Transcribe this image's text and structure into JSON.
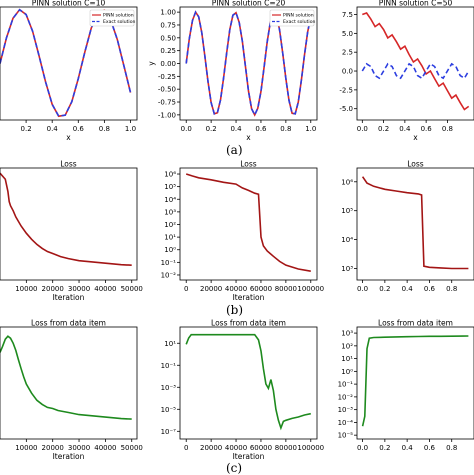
{
  "captions": [
    "(a)",
    "(b)",
    "(c)"
  ],
  "chart_data": [
    {
      "id": "a1",
      "type": "line",
      "title": "PINN solution C=10",
      "xlabel": "x",
      "ylabel": "",
      "xlim": [
        0,
        1.05
      ],
      "ylim": [
        -1.05,
        1.05
      ],
      "xticks": [
        "0.2",
        "0.4",
        "0.6",
        "0.8",
        "1.0"
      ],
      "xtick_values": [
        0.2,
        0.4,
        0.6,
        0.8,
        1.0
      ],
      "yticks": [],
      "ytick_values": [],
      "legend": {
        "position": "top-right",
        "entries": [
          "PINN solution",
          "Exact solution"
        ]
      },
      "series": [
        {
          "name": "PINN solution",
          "color": "#d62728",
          "style": "solid",
          "x": [
            0.0,
            0.05,
            0.1,
            0.15,
            0.2,
            0.25,
            0.3,
            0.35,
            0.4,
            0.45,
            0.5,
            0.55,
            0.6,
            0.65,
            0.7,
            0.75,
            0.8,
            0.85,
            0.9,
            0.95,
            1.0
          ],
          "y": [
            0.0,
            0.48,
            0.84,
            1.0,
            0.91,
            0.6,
            0.14,
            -0.35,
            -0.76,
            -0.98,
            -0.96,
            -0.71,
            -0.28,
            0.21,
            0.66,
            0.94,
            0.99,
            0.8,
            0.44,
            -0.05,
            -0.54
          ]
        },
        {
          "name": "Exact solution",
          "color": "#2c3ee0",
          "style": "dashed",
          "x": [
            0.0,
            0.05,
            0.1,
            0.15,
            0.2,
            0.25,
            0.3,
            0.35,
            0.4,
            0.45,
            0.5,
            0.55,
            0.6,
            0.65,
            0.7,
            0.75,
            0.8,
            0.85,
            0.9,
            0.95,
            1.0
          ],
          "y": [
            0.0,
            0.48,
            0.84,
            1.0,
            0.91,
            0.6,
            0.14,
            -0.35,
            -0.76,
            -0.98,
            -0.96,
            -0.71,
            -0.28,
            0.21,
            0.66,
            0.94,
            0.99,
            0.8,
            0.44,
            -0.05,
            -0.54
          ]
        }
      ]
    },
    {
      "id": "a2",
      "type": "line",
      "title": "PINN solution C=20",
      "xlabel": "x",
      "ylabel": "y",
      "xlim": [
        -0.05,
        1.05
      ],
      "ylim": [
        -1.1,
        1.1
      ],
      "xticks": [
        "0.0",
        "0.2",
        "0.4",
        "0.6",
        "0.8",
        "1.0"
      ],
      "xtick_values": [
        0.0,
        0.2,
        0.4,
        0.6,
        0.8,
        1.0
      ],
      "yticks": [
        "-1.00",
        "-0.75",
        "-0.50",
        "-0.25",
        "0.00",
        "0.25",
        "0.50",
        "0.75",
        "1.00"
      ],
      "ytick_values": [
        -1.0,
        -0.75,
        -0.5,
        -0.25,
        0.0,
        0.25,
        0.5,
        0.75,
        1.0
      ],
      "legend": {
        "position": "top-right",
        "entries": [
          "PINN solution",
          "Exact solution"
        ]
      },
      "series": [
        {
          "name": "PINN solution",
          "color": "#d62728",
          "style": "solid",
          "x": [
            0.0,
            0.025,
            0.05,
            0.075,
            0.1,
            0.125,
            0.15,
            0.175,
            0.2,
            0.225,
            0.25,
            0.275,
            0.3,
            0.325,
            0.35,
            0.375,
            0.4,
            0.425,
            0.45,
            0.475,
            0.5,
            0.525,
            0.55,
            0.575,
            0.6,
            0.625,
            0.65,
            0.675,
            0.7,
            0.725,
            0.75,
            0.775,
            0.8,
            0.825,
            0.85,
            0.875,
            0.9,
            0.925,
            0.95,
            0.975,
            1.0
          ],
          "y": [
            0.0,
            0.48,
            0.84,
            1.0,
            0.91,
            0.6,
            0.14,
            -0.35,
            -0.76,
            -0.98,
            -0.96,
            -0.71,
            -0.28,
            0.21,
            0.66,
            0.94,
            0.99,
            0.8,
            0.44,
            -0.05,
            -0.54,
            -0.88,
            -1.0,
            -0.87,
            -0.54,
            -0.07,
            0.42,
            0.8,
            0.99,
            0.95,
            0.65,
            0.19,
            -0.3,
            -0.72,
            -0.97,
            -0.98,
            -0.75,
            -0.32,
            0.17,
            0.62,
            0.91
          ]
        },
        {
          "name": "Exact solution",
          "color": "#2c3ee0",
          "style": "dashed",
          "x": [
            0.0,
            0.025,
            0.05,
            0.075,
            0.1,
            0.125,
            0.15,
            0.175,
            0.2,
            0.225,
            0.25,
            0.275,
            0.3,
            0.325,
            0.35,
            0.375,
            0.4,
            0.425,
            0.45,
            0.475,
            0.5,
            0.525,
            0.55,
            0.575,
            0.6,
            0.625,
            0.65,
            0.675,
            0.7,
            0.725,
            0.75,
            0.775,
            0.8,
            0.825,
            0.85,
            0.875,
            0.9,
            0.925,
            0.95,
            0.975,
            1.0
          ],
          "y": [
            0.0,
            0.48,
            0.84,
            1.0,
            0.91,
            0.6,
            0.14,
            -0.35,
            -0.76,
            -0.98,
            -0.96,
            -0.71,
            -0.28,
            0.21,
            0.66,
            0.94,
            0.99,
            0.8,
            0.44,
            -0.05,
            -0.54,
            -0.88,
            -1.0,
            -0.87,
            -0.54,
            -0.07,
            0.42,
            0.8,
            0.99,
            0.95,
            0.65,
            0.19,
            -0.3,
            -0.72,
            -0.97,
            -0.98,
            -0.75,
            -0.32,
            0.17,
            0.62,
            0.91
          ]
        }
      ]
    },
    {
      "id": "a3",
      "type": "line",
      "title": "PINN solution C=50",
      "xlabel": "x",
      "ylabel": "",
      "xlim": [
        -0.05,
        1.05
      ],
      "ylim": [
        -6.5,
        8.5
      ],
      "xticks": [
        "0.0",
        "0.2",
        "0.4",
        "0.6",
        "0.8"
      ],
      "xtick_values": [
        0.0,
        0.2,
        0.4,
        0.6,
        0.8
      ],
      "yticks": [
        "-5.0",
        "-2.5",
        "0.0",
        "2.5",
        "5.0",
        "7.5"
      ],
      "ytick_values": [
        -5.0,
        -2.5,
        0.0,
        2.5,
        5.0,
        7.5
      ],
      "legend": null,
      "series": [
        {
          "name": "",
          "color": "#d62728",
          "style": "solid",
          "x": [
            0.0,
            0.04,
            0.08,
            0.12,
            0.16,
            0.2,
            0.24,
            0.28,
            0.32,
            0.36,
            0.4,
            0.44,
            0.48,
            0.52,
            0.56,
            0.6,
            0.64,
            0.68,
            0.72,
            0.76,
            0.8,
            0.84,
            0.88,
            0.92,
            0.96,
            1.0
          ],
          "y": [
            7.5,
            7.7,
            6.9,
            5.9,
            6.3,
            5.5,
            4.4,
            4.8,
            3.9,
            2.9,
            3.3,
            2.2,
            1.2,
            1.6,
            0.7,
            -0.4,
            0.0,
            -1.0,
            -2.0,
            -1.6,
            -2.6,
            -3.6,
            -3.2,
            -4.2,
            -5.1,
            -4.7
          ]
        },
        {
          "name": "",
          "color": "#2c3ee0",
          "style": "dashed",
          "x": [
            0.0,
            0.04,
            0.08,
            0.12,
            0.16,
            0.2,
            0.24,
            0.28,
            0.32,
            0.36,
            0.4,
            0.44,
            0.48,
            0.52,
            0.56,
            0.6,
            0.64,
            0.68,
            0.72,
            0.76,
            0.8,
            0.84,
            0.88,
            0.92,
            0.96,
            1.0
          ],
          "y": [
            0.0,
            0.95,
            0.6,
            -0.6,
            -0.95,
            0.0,
            0.95,
            0.6,
            -0.6,
            -0.95,
            0.0,
            0.95,
            0.6,
            -0.6,
            -0.95,
            0.0,
            0.95,
            0.6,
            -0.6,
            -0.95,
            0.0,
            0.95,
            0.6,
            -0.6,
            -0.95,
            0.0
          ]
        }
      ]
    },
    {
      "id": "b1",
      "type": "line",
      "title": "Loss",
      "xlabel": "Iteration",
      "ylabel": "",
      "xlim": [
        0,
        52000
      ],
      "ylim": [
        -0.5,
        10.5
      ],
      "xticks": [
        "10000",
        "20000",
        "30000",
        "40000",
        "50000"
      ],
      "xtick_values": [
        10000,
        20000,
        30000,
        40000,
        50000
      ],
      "yticks": [],
      "ytick_values": [],
      "legend": null,
      "series": [
        {
          "name": "",
          "color": "#a31515",
          "style": "solid",
          "x": [
            0,
            2000,
            3000,
            3500,
            4000,
            5000,
            6000,
            8000,
            10000,
            12000,
            14000,
            16000,
            18000,
            20000,
            23000,
            26000,
            30000,
            34000,
            38000,
            42000,
            46000,
            50000
          ],
          "y": [
            10.0,
            9.4,
            8.2,
            7.2,
            6.8,
            6.3,
            5.7,
            4.8,
            4.1,
            3.5,
            3.0,
            2.6,
            2.3,
            2.1,
            1.8,
            1.6,
            1.4,
            1.3,
            1.2,
            1.1,
            1.0,
            0.95
          ]
        }
      ]
    },
    {
      "id": "b2",
      "type": "line",
      "title": "Loss",
      "yscale": "log",
      "xlabel": "Iteration",
      "ylabel": "",
      "xlim": [
        -5000,
        105000
      ],
      "ylim": [
        0.004,
        3000000
      ],
      "xticks": [
        "0",
        "20000",
        "40000",
        "60000",
        "80000",
        "100000"
      ],
      "xtick_values": [
        0,
        20000,
        40000,
        60000,
        80000,
        100000
      ],
      "yticks": [
        "10^-2",
        "10^-1",
        "10^0",
        "10^1",
        "10^2",
        "10^3",
        "10^4",
        "10^5",
        "10^6"
      ],
      "ytick_values": [
        0.01,
        0.1,
        1,
        10,
        100,
        1000,
        10000,
        100000,
        1000000
      ],
      "legend": null,
      "series": [
        {
          "name": "",
          "color": "#a31515",
          "style": "solid",
          "x": [
            0,
            5000,
            10000,
            20000,
            30000,
            40000,
            45000,
            50000,
            55000,
            58000,
            60000,
            62000,
            65000,
            70000,
            75000,
            80000,
            90000,
            100000
          ],
          "y": [
            1000000,
            700000,
            500000,
            350000,
            220000,
            160000,
            80000,
            50000,
            30000,
            25000,
            10,
            2.0,
            0.8,
            0.3,
            0.12,
            0.06,
            0.03,
            0.02
          ]
        }
      ]
    },
    {
      "id": "b3",
      "type": "line",
      "title": "Loss",
      "yscale": "log",
      "xlabel": "",
      "ylabel": "",
      "xlim": [
        -0.05,
        1.0
      ],
      "ylim": [
        400,
        3000000
      ],
      "xticks": [
        "0.0",
        "0.2",
        "0.4",
        "0.6",
        "0.8"
      ],
      "xtick_values": [
        0.0,
        0.2,
        0.4,
        0.6,
        0.8
      ],
      "yticks": [
        "10^3",
        "10^4",
        "10^5",
        "10^6"
      ],
      "ytick_values": [
        1000,
        10000,
        100000,
        1000000
      ],
      "legend": null,
      "series": [
        {
          "name": "",
          "color": "#a31515",
          "style": "solid",
          "x": [
            0.0,
            0.04,
            0.1,
            0.2,
            0.3,
            0.4,
            0.5,
            0.53,
            0.55,
            0.6,
            0.7,
            0.8,
            0.9,
            0.95
          ],
          "y": [
            1500000,
            900000,
            700000,
            550000,
            480000,
            420000,
            380000,
            350000,
            1200,
            1100,
            1050,
            1000,
            1000,
            1000
          ]
        }
      ]
    },
    {
      "id": "c1",
      "type": "line",
      "title": "Loss from data item",
      "xlabel": "Iteration",
      "ylabel": "",
      "xlim": [
        0,
        52000
      ],
      "ylim": [
        -0.5,
        10.5
      ],
      "xticks": [
        "10000",
        "20000",
        "30000",
        "40000",
        "50000"
      ],
      "xtick_values": [
        10000,
        20000,
        30000,
        40000,
        50000
      ],
      "yticks": [],
      "ytick_values": [],
      "legend": null,
      "series": [
        {
          "name": "",
          "color": "#1e8a1e",
          "style": "solid",
          "x": [
            0,
            1000,
            2000,
            3000,
            4000,
            5000,
            6000,
            7000,
            8000,
            9000,
            10000,
            12000,
            14000,
            16000,
            18000,
            20000,
            22000,
            24000,
            26000,
            30000,
            34000,
            38000,
            42000,
            46000,
            50000
          ],
          "y": [
            8.0,
            8.6,
            9.3,
            9.6,
            9.4,
            8.9,
            8.2,
            7.3,
            6.4,
            5.6,
            4.9,
            4.0,
            3.3,
            2.9,
            2.6,
            2.5,
            2.3,
            2.2,
            2.1,
            1.9,
            1.8,
            1.7,
            1.6,
            1.5,
            1.45
          ]
        }
      ]
    },
    {
      "id": "c2",
      "type": "line",
      "title": "Loss from data item",
      "yscale": "log",
      "xlabel": "Iteration",
      "ylabel": "",
      "xlim": [
        -5000,
        105000
      ],
      "ylim": [
        2e-08,
        300
      ],
      "xticks": [
        "0",
        "20000",
        "40000",
        "60000",
        "80000",
        "100000"
      ],
      "xtick_values": [
        0,
        20000,
        40000,
        60000,
        80000,
        100000
      ],
      "yticks": [
        "10^1",
        "10^-1",
        "10^-3",
        "10^-5",
        "10^-7"
      ],
      "ytick_values": [
        10,
        0.1,
        0.001,
        1e-05,
        1e-07
      ],
      "legend": null,
      "series": [
        {
          "name": "",
          "color": "#1e8a1e",
          "style": "solid",
          "x": [
            0,
            2000,
            4000,
            10000,
            20000,
            30000,
            40000,
            50000,
            55000,
            58000,
            60000,
            62000,
            64000,
            66000,
            68000,
            70000,
            72000,
            74000,
            76000,
            78000,
            80000,
            85000,
            90000,
            95000,
            100000
          ],
          "y": [
            8,
            30,
            60,
            60,
            60,
            60,
            60,
            60,
            60,
            20,
            2,
            0.05,
            0.002,
            0.0008,
            0.005,
            0.0005,
            1e-05,
            1e-06,
            2e-07,
            8e-07,
            1e-06,
            1.5e-06,
            2e-06,
            3e-06,
            4e-06
          ]
        }
      ]
    },
    {
      "id": "c3",
      "type": "line",
      "title": "Loss from data item",
      "yscale": "log",
      "xlabel": "",
      "ylabel": "",
      "xlim": [
        -0.05,
        1.0
      ],
      "ylim": [
        5e-06,
        3000
      ],
      "xticks": [
        "0.0",
        "0.2",
        "0.4",
        "0.6",
        "0.8"
      ],
      "xtick_values": [
        0.0,
        0.2,
        0.4,
        0.6,
        0.8
      ],
      "yticks": [
        "10^-5",
        "10^-4",
        "10^-3",
        "10^-2",
        "10^-1",
        "10^0",
        "10^1",
        "10^2",
        "10^3"
      ],
      "ytick_values": [
        1e-05,
        0.0001,
        0.001,
        0.01,
        0.1,
        1,
        10,
        100,
        1000
      ],
      "legend": null,
      "series": [
        {
          "name": "",
          "color": "#1e8a1e",
          "style": "solid",
          "x": [
            0.0,
            0.02,
            0.04,
            0.06,
            0.1,
            0.2,
            0.3,
            0.4,
            0.5,
            0.6,
            0.7,
            0.8,
            0.9,
            0.95
          ],
          "y": [
            5e-05,
            0.0003,
            60,
            400,
            450,
            480,
            500,
            520,
            540,
            560,
            560,
            570,
            580,
            590
          ]
        }
      ]
    }
  ]
}
